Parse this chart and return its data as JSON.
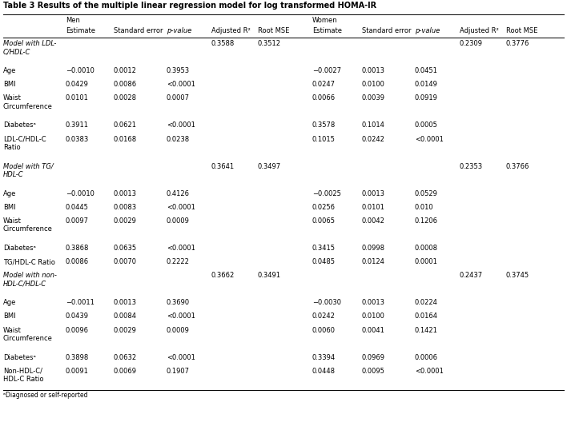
{
  "title": "Table 3 Results of the multiple linear regression model for log transformed HOMA-IR",
  "rows": [
    {
      "label": "Model with LDL-\nC/HDL-C",
      "italic": true,
      "men": [
        "",
        "",
        "",
        "0.3588",
        "0.3512"
      ],
      "women": [
        "",
        "",
        "",
        "0.2309",
        "0.3776"
      ]
    },
    {
      "label": "Age",
      "italic": false,
      "men": [
        "−0.0010",
        "0.0012",
        "0.3953",
        "",
        ""
      ],
      "women": [
        "−0.0027",
        "0.0013",
        "0.0451",
        "",
        ""
      ]
    },
    {
      "label": "BMI",
      "italic": false,
      "men": [
        "0.0429",
        "0.0086",
        "<0.0001",
        "",
        ""
      ],
      "women": [
        "0.0247",
        "0.0100",
        "0.0149",
        "",
        ""
      ]
    },
    {
      "label": "Waist\nCircumference",
      "italic": false,
      "men": [
        "0.0101",
        "0.0028",
        "0.0007",
        "",
        ""
      ],
      "women": [
        "0.0066",
        "0.0039",
        "0.0919",
        "",
        ""
      ]
    },
    {
      "label": "Diabetesᵃ",
      "italic": false,
      "men": [
        "0.3911",
        "0.0621",
        "<0.0001",
        "",
        ""
      ],
      "women": [
        "0.3578",
        "0.1014",
        "0.0005",
        "",
        ""
      ]
    },
    {
      "label": "LDL-C/HDL-C\nRatio",
      "italic": false,
      "men": [
        "0.0383",
        "0.0168",
        "0.0238",
        "",
        ""
      ],
      "women": [
        "0.1015",
        "0.0242",
        "<0.0001",
        "",
        ""
      ]
    },
    {
      "label": "Model with TG/\nHDL-C",
      "italic": true,
      "men": [
        "",
        "",
        "",
        "0.3641",
        "0.3497"
      ],
      "women": [
        "",
        "",
        "",
        "0.2353",
        "0.3766"
      ]
    },
    {
      "label": "Age",
      "italic": false,
      "men": [
        "−0.0010",
        "0.0013",
        "0.4126",
        "",
        ""
      ],
      "women": [
        "−0.0025",
        "0.0013",
        "0.0529",
        "",
        ""
      ]
    },
    {
      "label": "BMI",
      "italic": false,
      "men": [
        "0.0445",
        "0.0083",
        "<0.0001",
        "",
        ""
      ],
      "women": [
        "0.0256",
        "0.0101",
        "0.010",
        "",
        ""
      ]
    },
    {
      "label": "Waist\nCircumference",
      "italic": false,
      "men": [
        "0.0097",
        "0.0029",
        "0.0009",
        "",
        ""
      ],
      "women": [
        "0.0065",
        "0.0042",
        "0.1206",
        "",
        ""
      ]
    },
    {
      "label": "Diabetesᵃ",
      "italic": false,
      "men": [
        "0.3868",
        "0.0635",
        "<0.0001",
        "",
        ""
      ],
      "women": [
        "0.3415",
        "0.0998",
        "0.0008",
        "",
        ""
      ]
    },
    {
      "label": "TG/HDL-C Ratio",
      "italic": false,
      "men": [
        "0.0086",
        "0.0070",
        "0.2222",
        "",
        ""
      ],
      "women": [
        "0.0485",
        "0.0124",
        "0.0001",
        "",
        ""
      ]
    },
    {
      "label": "Model with non-\nHDL-C/HDL-C",
      "italic": true,
      "men": [
        "",
        "",
        "",
        "0.3662",
        "0.3491"
      ],
      "women": [
        "",
        "",
        "",
        "0.2437",
        "0.3745"
      ]
    },
    {
      "label": "Age",
      "italic": false,
      "men": [
        "−0.0011",
        "0.0013",
        "0.3690",
        "",
        ""
      ],
      "women": [
        "−0.0030",
        "0.0013",
        "0.0224",
        "",
        ""
      ]
    },
    {
      "label": "BMI",
      "italic": false,
      "men": [
        "0.0439",
        "0.0084",
        "<0.0001",
        "",
        ""
      ],
      "women": [
        "0.0242",
        "0.0100",
        "0.0164",
        "",
        ""
      ]
    },
    {
      "label": "Waist\nCircumference",
      "italic": false,
      "men": [
        "0.0096",
        "0.0029",
        "0.0009",
        "",
        ""
      ],
      "women": [
        "0.0060",
        "0.0041",
        "0.1421",
        "",
        ""
      ]
    },
    {
      "label": "Diabetesᵃ",
      "italic": false,
      "men": [
        "0.3898",
        "0.0632",
        "<0.0001",
        "",
        ""
      ],
      "women": [
        "0.3394",
        "0.0969",
        "0.0006",
        "",
        ""
      ]
    },
    {
      "label": "Non-HDL-C/\nHDL-C Ratio",
      "italic": false,
      "men": [
        "0.0091",
        "0.0069",
        "0.1907",
        "",
        ""
      ],
      "women": [
        "0.0448",
        "0.0095",
        "<0.0001",
        "",
        ""
      ]
    }
  ],
  "col_labels": [
    "Estimate",
    "Standard error",
    "p-value",
    "Adjusted R²",
    "Root MSE",
    "Estimate",
    "Standard error",
    "p-value",
    "Adjusted R²",
    "Root MSE"
  ],
  "footnote": "ᵃDiagnosed or self-reported",
  "fontsize": 6.0,
  "title_fontsize": 7.0
}
